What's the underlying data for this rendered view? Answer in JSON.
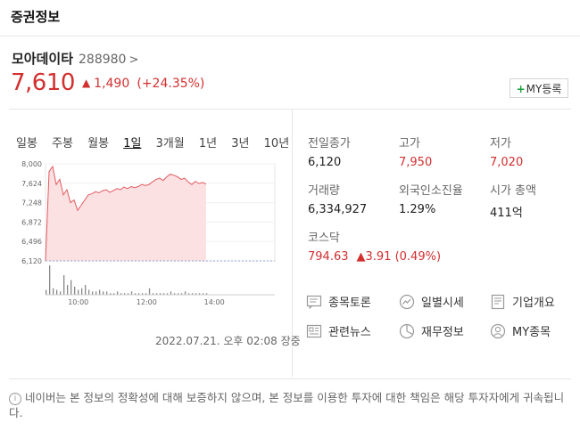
{
  "header": {
    "title": "증권정보"
  },
  "stock": {
    "name": "모아데이타",
    "code": "288980",
    "chevron": ">",
    "price": "7,610",
    "arrow": "▲",
    "change": "1,490",
    "change_pct": "(+24.35%)",
    "my_button": "MY등록",
    "my_plus": "+"
  },
  "periods": [
    "일봉",
    "주봉",
    "월봉",
    "1일",
    "3개월",
    "1년",
    "3년",
    "10년"
  ],
  "active_period": "1일",
  "datetime": "2022.07.21. 오후 02:08 장중",
  "info": {
    "prev_close": {
      "label": "전일종가",
      "value": "6,120"
    },
    "high": {
      "label": "고가",
      "value": "7,950"
    },
    "low": {
      "label": "저가",
      "value": "7,020"
    },
    "volume": {
      "label": "거래량",
      "value": "6,334,927"
    },
    "foreign": {
      "label": "외국인소진율",
      "value": "1.29%"
    },
    "mktcap": {
      "label": "시가 총액",
      "value": "411억"
    },
    "index": {
      "label": "코스닥",
      "value": "794.63",
      "change": "▲3.91 (0.49%)"
    }
  },
  "links": [
    {
      "label": "종목토론",
      "icon": "discussion-icon"
    },
    {
      "label": "일별시세",
      "icon": "daily-price-icon"
    },
    {
      "label": "기업개요",
      "icon": "company-icon"
    },
    {
      "label": "관련뉴스",
      "icon": "news-icon"
    },
    {
      "label": "재무정보",
      "icon": "finance-icon"
    },
    {
      "label": "MY종목",
      "icon": "my-stock-icon"
    }
  ],
  "notice": {
    "icon": "info-icon",
    "text": "네이버는 본 정보의 정확성에 대해 보증하지 않으며, 본 정보를 이용한 투자에 대한 책임은 해당 투자자에게 귀속됩니다."
  },
  "colors": {
    "up": "#d32f2f",
    "area": "#fbe1e2",
    "line": "#e35a5f"
  },
  "chart_data": {
    "type": "area",
    "ylim": [
      6120,
      8000
    ],
    "yticks": [
      "8,000",
      "7,624",
      "7,248",
      "6,872",
      "6,496",
      "6,120"
    ],
    "xticks": [
      "10:00",
      "12:00",
      "14:00"
    ],
    "series": [
      {
        "values": [
          6120,
          7850,
          7950,
          7600,
          7700,
          7400,
          7500,
          7250,
          7300,
          7100,
          7200,
          7300,
          7400,
          7420,
          7460,
          7440,
          7480,
          7500,
          7450,
          7480,
          7520,
          7500,
          7550,
          7520,
          7560,
          7540,
          7560,
          7600,
          7580,
          7600,
          7650,
          7700,
          7720,
          7680,
          7750,
          7800,
          7780,
          7750,
          7700,
          7720,
          7650,
          7600,
          7660,
          7620,
          7640,
          7610
        ]
      }
    ],
    "volume": [
      3,
      18,
      4,
      3,
      2,
      12,
      6,
      9,
      5,
      3,
      4,
      6,
      3,
      2,
      2,
      3,
      2,
      2,
      1,
      1,
      2,
      1,
      1,
      1,
      2,
      1,
      1,
      1,
      1,
      4,
      1,
      1,
      1,
      1,
      1,
      2,
      1,
      1,
      1,
      2,
      1,
      1,
      1,
      1,
      1,
      1
    ]
  }
}
